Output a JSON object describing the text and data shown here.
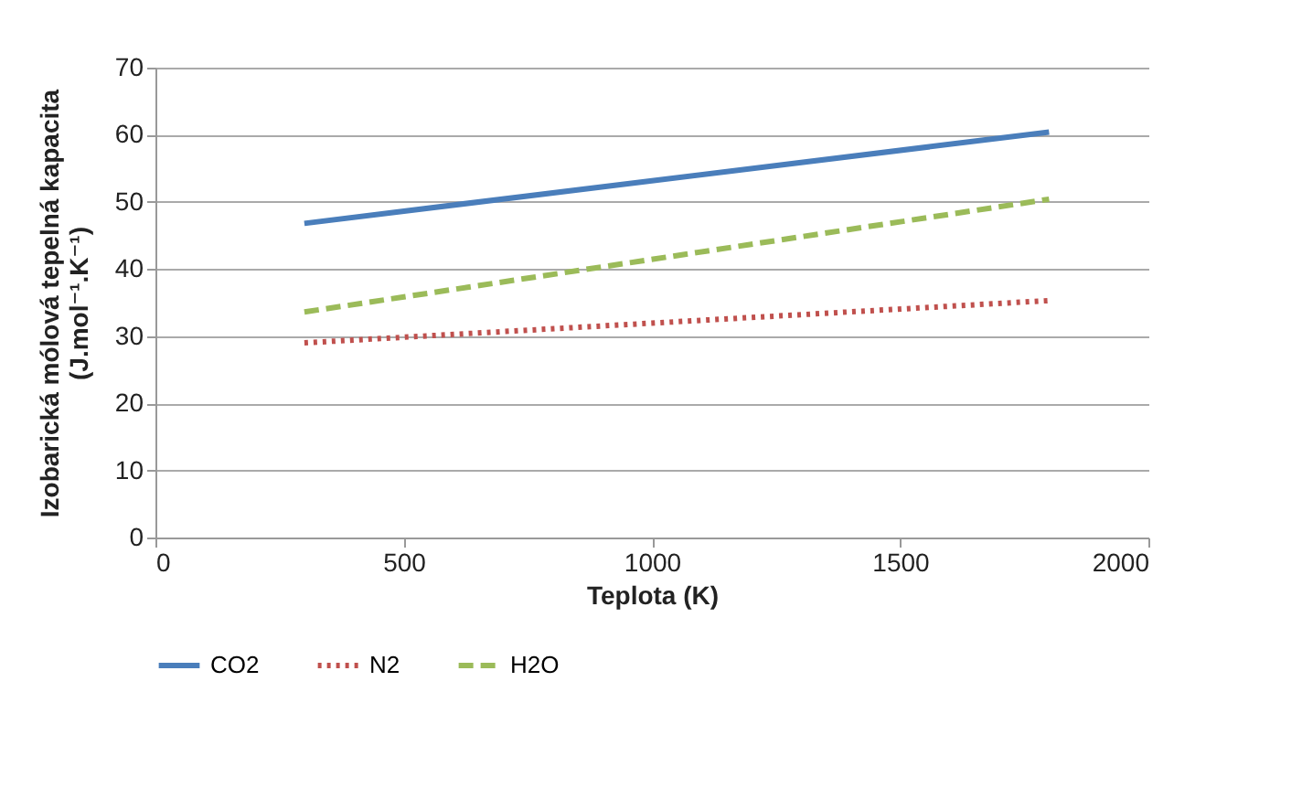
{
  "chart_data": {
    "type": "line",
    "xlabel": "Teplota (K)",
    "ylabel": "Izobarická mólová tepelná kapacita\n(J.mol⁻¹.K⁻¹)",
    "x": [
      300,
      1800
    ],
    "series": [
      {
        "name": "CO2",
        "color": "#4a7ebb",
        "line_style": "solid",
        "values": [
          46.8,
          60.4
        ]
      },
      {
        "name": "N2",
        "color": "#c0504d",
        "line_style": "dotted",
        "values": [
          29.0,
          35.3
        ]
      },
      {
        "name": "H2O",
        "color": "#9bbb59",
        "line_style": "dashed",
        "values": [
          33.6,
          50.4
        ]
      }
    ],
    "xlim": [
      0,
      2000
    ],
    "xticks": [
      0,
      500,
      1000,
      1500,
      2000
    ],
    "ylim": [
      0,
      70
    ],
    "yticks": [
      0,
      10,
      20,
      30,
      40,
      50,
      60,
      70
    ],
    "grid": "y",
    "legend": "bottom"
  }
}
